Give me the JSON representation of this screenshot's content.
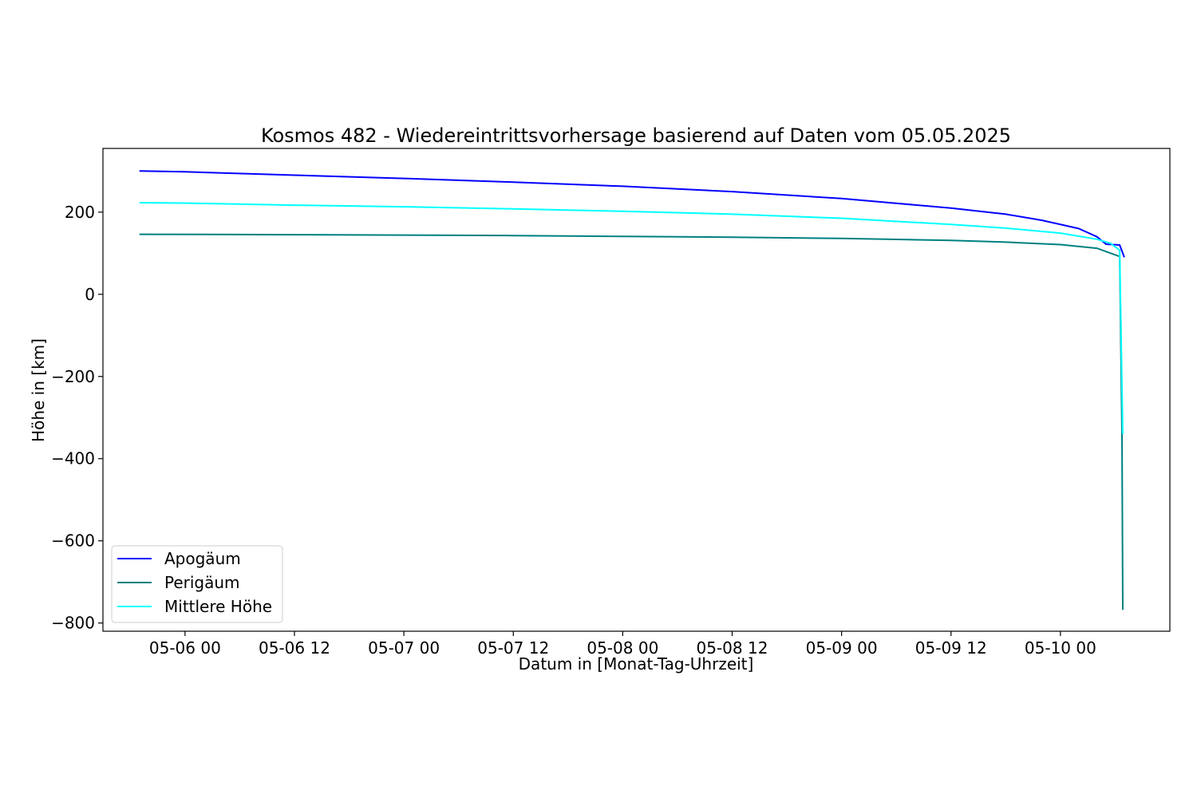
{
  "chart_data": {
    "type": "line",
    "title": "Kosmos 482 - Wiedereintrittsvorhersage basierend auf Daten vom 05.05.2025",
    "xlabel": "Datum in [Monat-Tag-Uhrzeit]",
    "ylabel": "Höhe in [km]",
    "x_axis_type": "datetime",
    "xlim": [
      "2025-05-05 15:00",
      "2025-05-10 12:00"
    ],
    "ylim": [
      -820,
      355
    ],
    "x_ticks": [
      {
        "value": "2025-05-06 00:00",
        "label": "05-06 00"
      },
      {
        "value": "2025-05-06 12:00",
        "label": "05-06 12"
      },
      {
        "value": "2025-05-07 00:00",
        "label": "05-07 00"
      },
      {
        "value": "2025-05-07 12:00",
        "label": "05-07 12"
      },
      {
        "value": "2025-05-08 00:00",
        "label": "05-08 00"
      },
      {
        "value": "2025-05-08 12:00",
        "label": "05-08 12"
      },
      {
        "value": "2025-05-09 00:00",
        "label": "05-09 00"
      },
      {
        "value": "2025-05-09 12:00",
        "label": "05-09 12"
      },
      {
        "value": "2025-05-10 00:00",
        "label": "05-10 00"
      }
    ],
    "y_ticks": [
      {
        "value": 200,
        "label": "200"
      },
      {
        "value": 0,
        "label": "0"
      },
      {
        "value": -200,
        "label": "−200"
      },
      {
        "value": -400,
        "label": "−400"
      },
      {
        "value": -600,
        "label": "−600"
      },
      {
        "value": -800,
        "label": "−800"
      }
    ],
    "grid": false,
    "legend_position": "lower-left",
    "series": [
      {
        "name": "Apogäum",
        "color": "#0000ff",
        "points": [
          [
            "2025-05-05 19:00",
            300
          ],
          [
            "2025-05-06 00:00",
            298
          ],
          [
            "2025-05-06 12:00",
            290
          ],
          [
            "2025-05-07 00:00",
            282
          ],
          [
            "2025-05-07 12:00",
            273
          ],
          [
            "2025-05-08 00:00",
            263
          ],
          [
            "2025-05-08 12:00",
            250
          ],
          [
            "2025-05-09 00:00",
            233
          ],
          [
            "2025-05-09 12:00",
            210
          ],
          [
            "2025-05-09 18:00",
            195
          ],
          [
            "2025-05-09 22:00",
            180
          ],
          [
            "2025-05-10 02:00",
            160
          ],
          [
            "2025-05-10 04:00",
            140
          ],
          [
            "2025-05-10 05:00",
            122
          ],
          [
            "2025-05-10 06:30",
            120
          ],
          [
            "2025-05-10 07:00",
            90
          ]
        ]
      },
      {
        "name": "Perigäum",
        "color": "#008080",
        "points": [
          [
            "2025-05-05 19:00",
            146
          ],
          [
            "2025-05-06 12:00",
            145
          ],
          [
            "2025-05-07 00:00",
            144
          ],
          [
            "2025-05-07 12:00",
            143
          ],
          [
            "2025-05-08 00:00",
            141
          ],
          [
            "2025-05-08 12:00",
            139
          ],
          [
            "2025-05-09 00:00",
            136
          ],
          [
            "2025-05-09 12:00",
            131
          ],
          [
            "2025-05-09 18:00",
            127
          ],
          [
            "2025-05-10 00:00",
            121
          ],
          [
            "2025-05-10 04:00",
            112
          ],
          [
            "2025-05-10 05:30",
            100
          ],
          [
            "2025-05-10 06:30",
            92
          ],
          [
            "2025-05-10 06:45",
            -340
          ],
          [
            "2025-05-10 06:50",
            -768
          ]
        ]
      },
      {
        "name": "Mittlere Höhe",
        "color": "#00ffff",
        "points": [
          [
            "2025-05-05 19:00",
            223
          ],
          [
            "2025-05-06 00:00",
            222
          ],
          [
            "2025-05-06 12:00",
            217
          ],
          [
            "2025-05-07 00:00",
            213
          ],
          [
            "2025-05-07 12:00",
            208
          ],
          [
            "2025-05-08 00:00",
            202
          ],
          [
            "2025-05-08 12:00",
            195
          ],
          [
            "2025-05-09 00:00",
            185
          ],
          [
            "2025-05-09 12:00",
            170
          ],
          [
            "2025-05-09 18:00",
            161
          ],
          [
            "2025-05-10 00:00",
            149
          ],
          [
            "2025-05-10 04:00",
            134
          ],
          [
            "2025-05-10 05:30",
            124
          ],
          [
            "2025-05-10 06:30",
            107
          ],
          [
            "2025-05-10 06:50",
            -340
          ]
        ]
      }
    ]
  }
}
